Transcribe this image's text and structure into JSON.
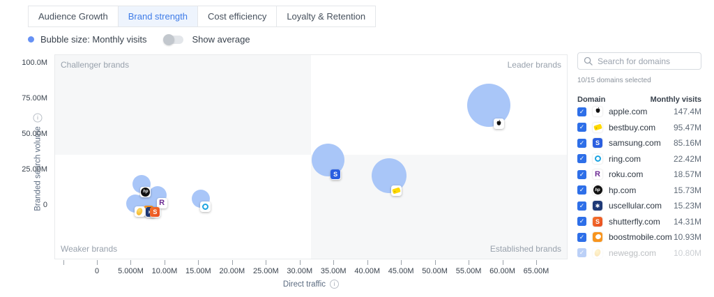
{
  "tabs": [
    {
      "label": "Audience Growth",
      "active": false
    },
    {
      "label": "Brand strength",
      "active": true
    },
    {
      "label": "Cost efficiency",
      "active": false
    },
    {
      "label": "Loyalty & Retention",
      "active": false
    }
  ],
  "legend": {
    "bubble_size_label": "Bubble size: Monthly visits",
    "toggle_label": "Show average",
    "toggle_on": false
  },
  "chart_data": {
    "type": "scatter",
    "subtype": "bubble-quadrant",
    "xlabel": "Direct traffic",
    "ylabel": "Branded search volume",
    "x_tick_values_M": [
      -5,
      0,
      5,
      10,
      15,
      20,
      25,
      30,
      35,
      40,
      45,
      50,
      55,
      60,
      65
    ],
    "x_tick_labels": [
      "0",
      "5.000M",
      "10.00M",
      "15.00M",
      "20.00M",
      "25.00M",
      "30.00M",
      "35.00M",
      "40.00M",
      "45.00M",
      "50.00M",
      "55.00M",
      "60.00M",
      "65.00M"
    ],
    "y_tick_values_M": [
      100,
      75,
      50,
      25,
      0
    ],
    "y_tick_labels": [
      "100.0M",
      "75.00M",
      "50.00M",
      "25.00M",
      "0"
    ],
    "x_domain_M": [
      -6.3,
      69.6
    ],
    "y_domain_M": [
      -38.2,
      105.9
    ],
    "quadrants": {
      "top_left": "Challenger brands",
      "top_right": "Leader brands",
      "bottom_left": "Weaker brands",
      "bottom_right": "Established brands",
      "divider_x_M": 31.6,
      "divider_y_M": 35.8
    },
    "bubbles": [
      {
        "domain": "apple.com",
        "icon": "apple-icon",
        "x_M": 57.9,
        "y_M": 70.6,
        "visits_M": 147.4
      },
      {
        "domain": "bestbuy.com",
        "icon": "bestbuy-icon",
        "x_M": 43.1,
        "y_M": 21.1,
        "visits_M": 95.47
      },
      {
        "domain": "samsung.com",
        "icon": "samsung-icon",
        "x_M": 34.1,
        "y_M": 31.9,
        "visits_M": 85.16
      },
      {
        "domain": "ring.com",
        "icon": "ring-icon",
        "x_M": 15.3,
        "y_M": 4.9,
        "visits_M": 22.42
      },
      {
        "domain": "boostmobile.com",
        "icon": "boostmobile-icon",
        "x_M": 6.9,
        "y_M": 2.0,
        "visits_M": 10.93
      },
      {
        "domain": "uscellular.com",
        "icon": "uscellular-icon",
        "x_M": 7.2,
        "y_M": 1.0,
        "visits_M": 15.23
      },
      {
        "domain": "hp.com",
        "icon": "hp-icon",
        "x_M": 6.5,
        "y_M": 15.2,
        "visits_M": 15.73
      },
      {
        "domain": "roku.com",
        "icon": "roku-icon",
        "x_M": 8.9,
        "y_M": 7.4,
        "visits_M": 18.57
      },
      {
        "domain": "newegg.com",
        "icon": "newegg-icon",
        "x_M": 5.6,
        "y_M": 1.5,
        "visits_M": 10.8
      },
      {
        "domain": "shutterfly.com",
        "icon": "shutterfly-icon",
        "x_M": 7.9,
        "y_M": 1.0,
        "visits_M": 14.31
      }
    ]
  },
  "side_panel": {
    "search_placeholder": "Search for domains",
    "selection_summary": "10/15 domains selected",
    "columns": {
      "domain": "Domain",
      "visits": "Monthly visits"
    },
    "rows": [
      {
        "domain": "apple.com",
        "icon": "apple-icon",
        "visits": "147.4M",
        "checked": true,
        "faded": false
      },
      {
        "domain": "bestbuy.com",
        "icon": "bestbuy-icon",
        "visits": "95.47M",
        "checked": true,
        "faded": false
      },
      {
        "domain": "samsung.com",
        "icon": "samsung-icon",
        "visits": "85.16M",
        "checked": true,
        "faded": false
      },
      {
        "domain": "ring.com",
        "icon": "ring-icon",
        "visits": "22.42M",
        "checked": true,
        "faded": false
      },
      {
        "domain": "roku.com",
        "icon": "roku-icon",
        "visits": "18.57M",
        "checked": true,
        "faded": false
      },
      {
        "domain": "hp.com",
        "icon": "hp-icon",
        "visits": "15.73M",
        "checked": true,
        "faded": false
      },
      {
        "domain": "uscellular.com",
        "icon": "uscellular-icon",
        "visits": "15.23M",
        "checked": true,
        "faded": false
      },
      {
        "domain": "shutterfly.com",
        "icon": "shutterfly-icon",
        "visits": "14.31M",
        "checked": true,
        "faded": false
      },
      {
        "domain": "boostmobile.com",
        "icon": "boostmobile-icon",
        "visits": "10.93M",
        "checked": true,
        "faded": false
      },
      {
        "domain": "newegg.com",
        "icon": "newegg-icon",
        "visits": "10.80M",
        "checked": true,
        "faded": true
      }
    ]
  },
  "colors": {
    "accent": "#3f7ce8",
    "tab_active_bg": "#eef4fd",
    "bubble_fill": "#a9c6f8",
    "legend_dot": "#6691f4",
    "quadrant_fill": "#f6f7f8",
    "quadrant_label": "#98a1ac",
    "checkbox_blue": "#2e6fe8"
  }
}
